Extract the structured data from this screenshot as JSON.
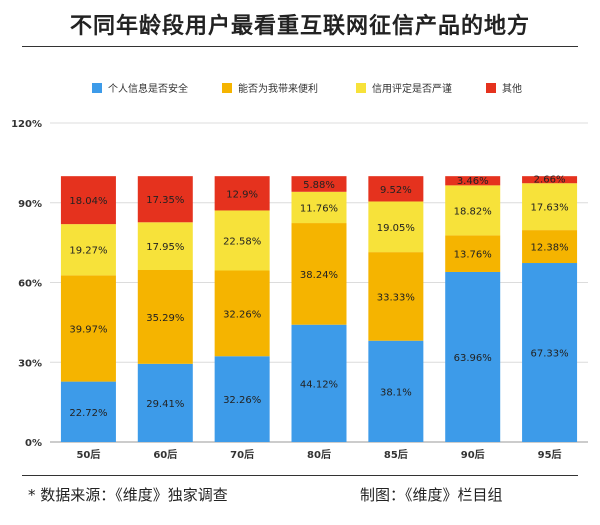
{
  "title": "不同年龄段用户最看重互联网征信产品的地方",
  "footer": {
    "source": "*  数据来源：《维度》独家调查",
    "credit": "制图：《维度》栏目组"
  },
  "chart_data": {
    "type": "bar",
    "stacked": true,
    "title": "不同年龄段用户最看重互联网征信产品的地方",
    "categories": [
      "50后",
      "60后",
      "70后",
      "80后",
      "85后",
      "90后",
      "95后"
    ],
    "series": [
      {
        "name": "个人信息是否安全",
        "color": "#3d9be9",
        "values": [
          22.72,
          29.41,
          32.26,
          44.12,
          38.1,
          63.96,
          67.33
        ],
        "labels": [
          "22.72%",
          "29.41%",
          "32.26%",
          "44.12%",
          "38.1%",
          "63.96%",
          "67.33%"
        ]
      },
      {
        "name": "能否为我带来便利",
        "color": "#f5b400",
        "values": [
          39.97,
          35.29,
          32.26,
          38.24,
          33.33,
          13.76,
          12.38
        ],
        "labels": [
          "39.97%",
          "35.29%",
          "32.26%",
          "38.24%",
          "33.33%",
          "13.76%",
          "12.38%"
        ]
      },
      {
        "name": "信用评定是否严谨",
        "color": "#f7e23a",
        "values": [
          19.27,
          17.95,
          22.58,
          11.76,
          19.05,
          18.82,
          17.63
        ],
        "labels": [
          "19.27%",
          "17.95%",
          "22.58%",
          "11.76%",
          "19.05%",
          "18.82%",
          "17.63%"
        ]
      },
      {
        "name": "其他",
        "color": "#e5321e",
        "values": [
          18.04,
          17.35,
          12.9,
          5.88,
          9.52,
          3.46,
          2.66
        ],
        "labels": [
          "18.04%",
          "17.35%",
          "12.9%",
          "5.88%",
          "9.52%",
          "3.46%",
          "2.66%"
        ]
      }
    ],
    "yticks": [
      "0%",
      "30%",
      "60%",
      "90%",
      "120%"
    ],
    "ytick_values": [
      0,
      30,
      60,
      90,
      120
    ],
    "ylim": [
      0,
      120
    ],
    "grid": true,
    "legend": "top"
  }
}
